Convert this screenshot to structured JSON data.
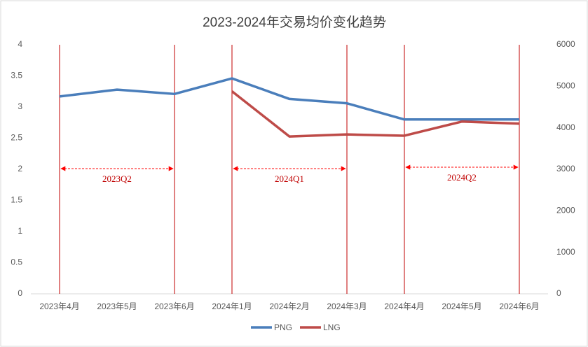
{
  "chart_data": {
    "type": "line",
    "title": "2023-2024年交易均价变化趋势",
    "categories": [
      "2023年4月",
      "2023年5月",
      "2023年6月",
      "2024年1月",
      "2024年2月",
      "2024年3月",
      "2024年4月",
      "2024年5月",
      "2024年6月"
    ],
    "series": [
      {
        "name": "PNG",
        "color": "#4a7ebb",
        "values": [
          3.17,
          3.28,
          3.21,
          3.46,
          3.13,
          3.06,
          2.8,
          2.8,
          2.8
        ]
      },
      {
        "name": "LNG",
        "color": "#be4b48",
        "axis": "y2",
        "values": [
          null,
          null,
          null,
          4880,
          3790,
          3840,
          3810,
          4150,
          4100
        ]
      }
    ],
    "ylim": [
      0,
      4
    ],
    "yticks": [
      0,
      0.5,
      1,
      1.5,
      2,
      2.5,
      3,
      3.5,
      4
    ],
    "y2lim": [
      0,
      6000
    ],
    "y2ticks": [
      0,
      1000,
      2000,
      3000,
      4000,
      5000,
      6000
    ],
    "annotations": [
      "2023Q2",
      "2024Q1",
      "2024Q2"
    ],
    "legend": "bottom",
    "grid": false
  }
}
